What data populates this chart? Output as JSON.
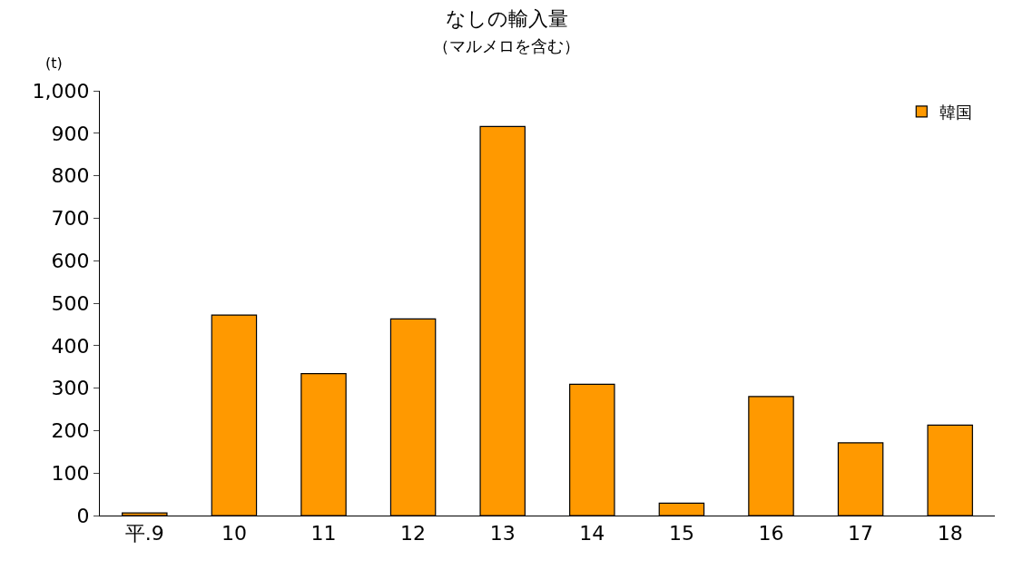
{
  "chart_data": {
    "type": "bar",
    "title": "なしの輸入量",
    "subtitle": "（マルメロを含む）",
    "ylabel": "(t)",
    "categories": [
      "平.9",
      "10",
      "11",
      "12",
      "13",
      "14",
      "15",
      "16",
      "17",
      "18"
    ],
    "series": [
      {
        "name": "韓国",
        "color": "#ff9900",
        "values": [
          6,
          472,
          334,
          463,
          916,
          309,
          29,
          280,
          171,
          213
        ]
      }
    ],
    "ylim": [
      0,
      1000
    ],
    "yticks": [
      0,
      100,
      200,
      300,
      400,
      500,
      600,
      700,
      800,
      900,
      {
        "value": 1000,
        "label": "1,000"
      }
    ],
    "legend": "top right"
  }
}
